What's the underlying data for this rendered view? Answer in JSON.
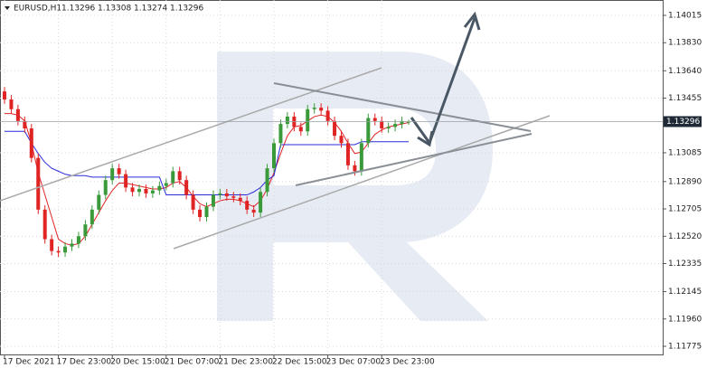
{
  "chart_data": {
    "type": "candlestick",
    "header": {
      "symbol": "EURUSD,H1",
      "open": 1.13296,
      "high": 1.13308,
      "low": 1.13274,
      "close": 1.13296
    },
    "last_price": 1.13296,
    "categories": [
      "17 Dec 2021",
      null,
      null,
      null,
      null,
      null,
      null,
      null,
      "17 Dec 23:00",
      null,
      null,
      null,
      null,
      null,
      null,
      null,
      "20 Dec 15:00",
      null,
      null,
      null,
      null,
      null,
      null,
      null,
      "21 Dec 07:00",
      null,
      null,
      null,
      null,
      null,
      null,
      null,
      "21 Dec 23:00",
      null,
      null,
      null,
      null,
      null,
      null,
      null,
      "22 Dec 15:00",
      null,
      null,
      null,
      null,
      null,
      null,
      null,
      "23 Dec 07:00",
      null,
      null,
      null,
      null,
      null,
      null,
      null,
      "23 Dec 23:00",
      null,
      null,
      null,
      null
    ],
    "open": [
      1.135,
      1.13446,
      1.1338,
      1.133,
      1.1325,
      1.1305,
      1.127,
      1.125,
      1.1242,
      1.1241,
      1.1245,
      1.1247,
      1.1252,
      1.126,
      1.127,
      1.128,
      1.129,
      1.1298,
      1.1294,
      1.1285,
      1.1282,
      1.1284,
      1.1281,
      1.1283,
      1.1286,
      1.1288,
      1.1296,
      1.129,
      1.128,
      1.127,
      1.1265,
      1.1272,
      1.128,
      1.1281,
      1.1279,
      1.1278,
      1.1276,
      1.127,
      1.1268,
      1.1282,
      1.1298,
      1.1315,
      1.1328,
      1.1333,
      1.1326,
      1.1323,
      1.1338,
      1.1339,
      1.1337,
      1.133,
      1.132,
      1.1315,
      1.13,
      1.1296,
      1.1315,
      1.1332,
      1.133,
      1.1325,
      1.1326,
      1.1328,
      1.13296
    ],
    "high": [
      1.1353,
      1.13476,
      1.1341,
      1.1333,
      1.1328,
      1.1308,
      1.1273,
      1.1253,
      1.1245,
      1.1248,
      1.125,
      1.1255,
      1.1263,
      1.1273,
      1.1283,
      1.1293,
      1.1301,
      1.1301,
      1.1297,
      1.1288,
      1.1287,
      1.1287,
      1.1286,
      1.1289,
      1.1291,
      1.1299,
      1.1299,
      1.1293,
      1.1283,
      1.1273,
      1.1275,
      1.1283,
      1.1284,
      1.1284,
      1.1282,
      1.1281,
      1.1279,
      1.1273,
      1.1285,
      1.1301,
      1.1318,
      1.1331,
      1.1336,
      1.1336,
      1.1329,
      1.1341,
      1.1342,
      1.1342,
      1.134,
      1.1333,
      1.1323,
      1.1318,
      1.1303,
      1.1318,
      1.1335,
      1.1335,
      1.1333,
      1.1329,
      1.1331,
      1.1333,
      1.13308
    ],
    "low": [
      1.13416,
      1.1335,
      1.1327,
      1.1322,
      1.1302,
      1.1267,
      1.1247,
      1.1239,
      1.1238,
      1.1238,
      1.1242,
      1.1244,
      1.1249,
      1.1257,
      1.1267,
      1.1277,
      1.1287,
      1.1291,
      1.1282,
      1.1279,
      1.1279,
      1.1278,
      1.1278,
      1.128,
      1.1283,
      1.1285,
      1.1287,
      1.1277,
      1.1267,
      1.1262,
      1.1262,
      1.1269,
      1.1277,
      1.1276,
      1.1275,
      1.1273,
      1.1267,
      1.1265,
      1.1265,
      1.1279,
      1.1295,
      1.1312,
      1.1325,
      1.1323,
      1.132,
      1.132,
      1.1335,
      1.1334,
      1.1327,
      1.1317,
      1.1312,
      1.1297,
      1.1293,
      1.1293,
      1.1312,
      1.1327,
      1.1322,
      1.1322,
      1.1323,
      1.1325,
      1.13274
    ],
    "close": [
      1.13446,
      1.1338,
      1.133,
      1.1325,
      1.1305,
      1.127,
      1.125,
      1.1242,
      1.1241,
      1.1245,
      1.1247,
      1.1252,
      1.126,
      1.127,
      1.128,
      1.129,
      1.1298,
      1.1294,
      1.1285,
      1.1282,
      1.1284,
      1.1281,
      1.1283,
      1.1286,
      1.1288,
      1.1296,
      1.129,
      1.128,
      1.127,
      1.1265,
      1.1272,
      1.128,
      1.1281,
      1.1279,
      1.1278,
      1.1276,
      1.127,
      1.1268,
      1.1282,
      1.1298,
      1.1315,
      1.1328,
      1.1333,
      1.1326,
      1.1323,
      1.1338,
      1.1339,
      1.1337,
      1.133,
      1.132,
      1.1315,
      1.13,
      1.1296,
      1.1315,
      1.1332,
      1.133,
      1.1325,
      1.1326,
      1.1328,
      1.133,
      1.13296
    ],
    "up_color": "#3a9a3a",
    "down_color": "#e02424",
    "lines": [
      {
        "color": "#e02424",
        "values": [
          1.1335,
          1.1335,
          1.1334,
          1.133,
          1.1315,
          1.1295,
          1.128,
          1.1265,
          1.125,
          1.1247,
          1.1246,
          1.1247,
          1.1252,
          1.126,
          1.1268,
          1.1276,
          1.1283,
          1.1288,
          1.1288,
          1.1287,
          1.1286,
          1.1285,
          1.1284,
          1.1284,
          1.1285,
          1.1288,
          1.1289,
          1.1285,
          1.1279,
          1.1274,
          1.1272,
          1.1274,
          1.1276,
          1.1277,
          1.1277,
          1.1276,
          1.1274,
          1.1272,
          1.1276,
          1.1284,
          1.1295,
          1.1308,
          1.132,
          1.1326,
          1.1327,
          1.133,
          1.1333,
          1.1334,
          1.1333,
          1.1329,
          1.1323,
          1.1315,
          1.1308,
          1.1309,
          1.1315,
          1.1321,
          1.1324,
          1.1326,
          1.1327,
          1.1328,
          1.1329
        ]
      },
      {
        "color": "#2b2bd9",
        "values": [
          1.1323,
          1.1323,
          1.1323,
          1.1323,
          1.1315,
          1.1308,
          1.1302,
          1.1298,
          1.1296,
          1.1294,
          1.1293,
          1.1293,
          1.1293,
          1.1292,
          1.1292,
          1.1292,
          1.1292,
          1.1292,
          1.1292,
          1.1292,
          1.1292,
          1.1292,
          1.1292,
          1.1292,
          1.128,
          1.128,
          1.128,
          1.128,
          1.128,
          1.128,
          1.128,
          1.128,
          1.128,
          1.128,
          1.128,
          1.128,
          1.128,
          1.1282,
          1.1285,
          1.129,
          1.1293,
          1.1314,
          1.1314,
          1.1314,
          1.1314,
          1.1314,
          1.1314,
          1.1314,
          1.1314,
          1.1314,
          1.1314,
          1.1314,
          1.1314,
          1.1316,
          1.1316,
          1.1316,
          1.1316,
          1.1316,
          1.1316,
          1.1316,
          1.1316
        ]
      }
    ],
    "ylim": [
      1.1172,
      1.14119
    ],
    "yticks": [
      1.14015,
      {
        "value": 1.1383,
        "label": "1.13830"
      },
      {
        "value": 1.1364,
        "label": "1.13640"
      },
      1.13455,
      1.13085,
      {
        "value": 1.1289,
        "label": "1.12890"
      },
      1.12705,
      {
        "value": 1.1252,
        "label": "1.12520"
      },
      1.12335,
      1.12145,
      {
        "value": 1.1196,
        "label": "1.11960"
      },
      1.11775
    ],
    "grid": true
  }
}
